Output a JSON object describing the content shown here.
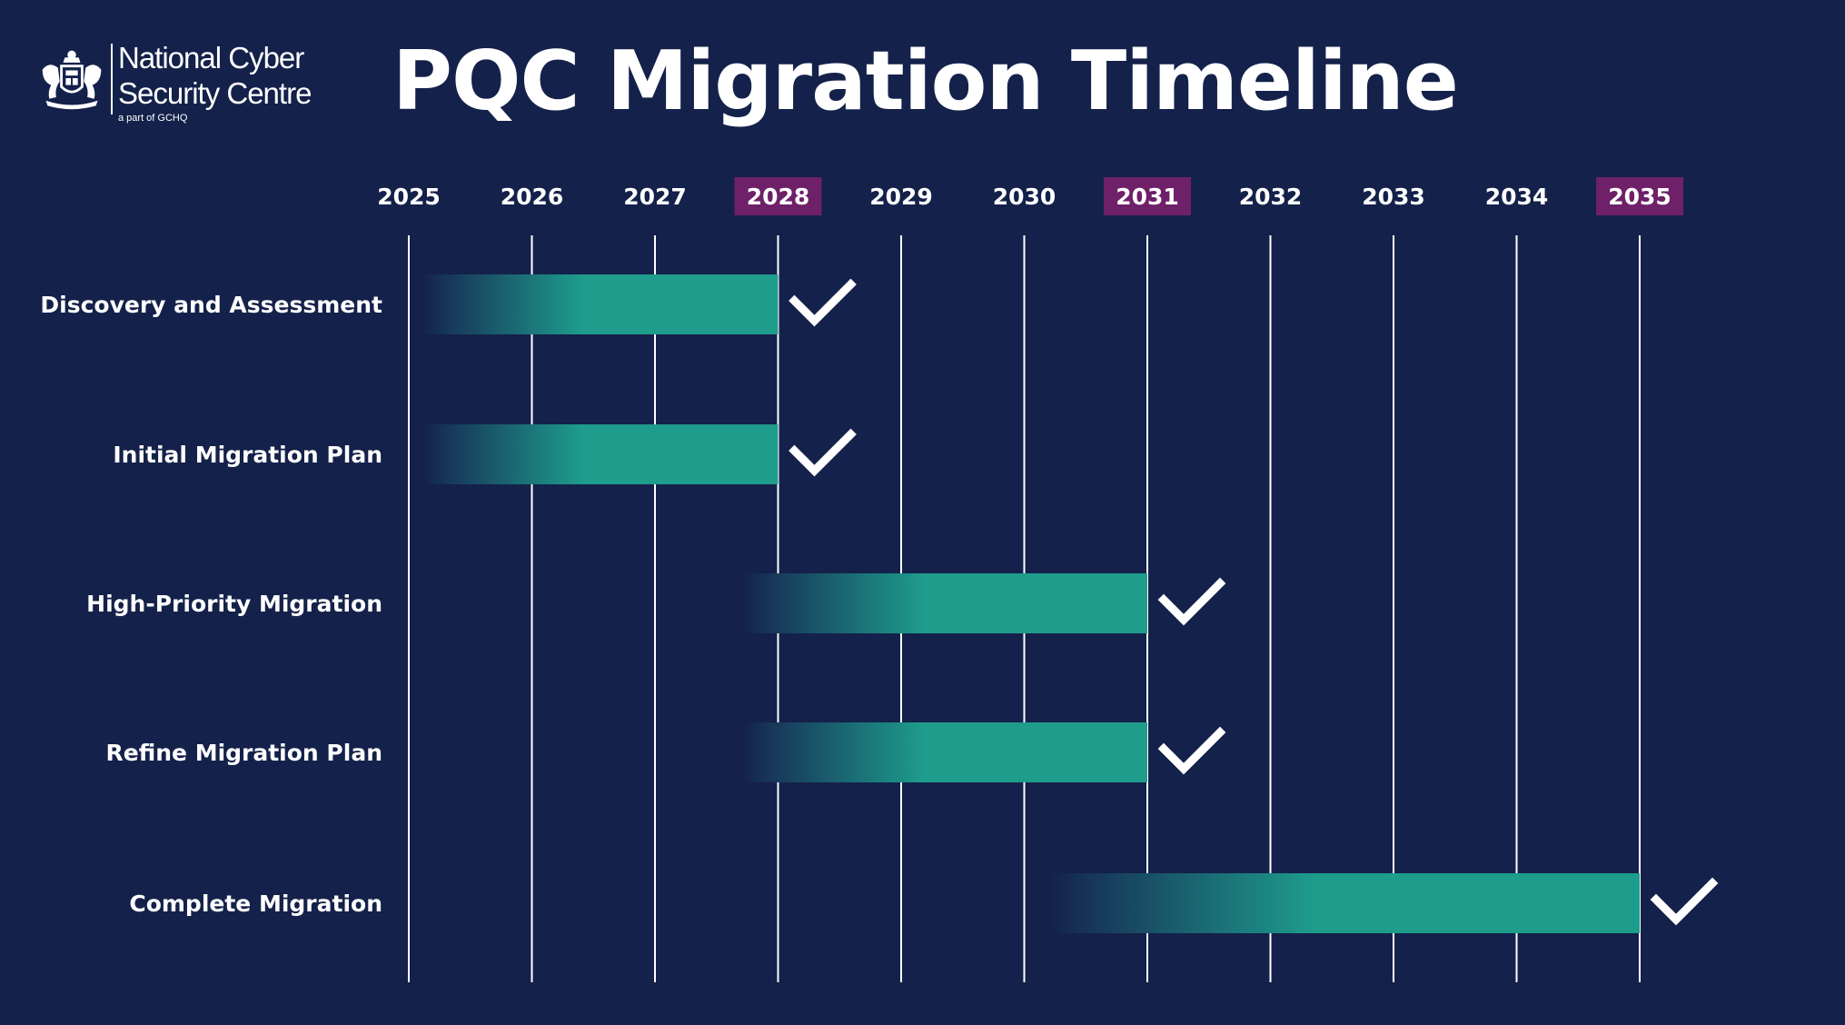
{
  "branding": {
    "name_line1": "National Cyber",
    "name_line2": "Security Centre",
    "tagline": "a part of GCHQ",
    "logo_icon": "royal-crest-icon"
  },
  "page": {
    "title": "PQC Migration Timeline"
  },
  "colors": {
    "background": "#14214a",
    "bar": "#1e9c8c",
    "bar_fade": "#17385a",
    "highlight": "#6e2068",
    "gridline": "#ffffff",
    "check": "#ffffff"
  },
  "chart_data": {
    "type": "gantt",
    "title": "PQC Migration Timeline",
    "years": [
      "2025",
      "2026",
      "2027",
      "2028",
      "2029",
      "2030",
      "2031",
      "2032",
      "2033",
      "2034",
      "2035"
    ],
    "highlighted_years": [
      "2028",
      "2031",
      "2035"
    ],
    "xlim": [
      2025,
      2035
    ],
    "tasks": [
      {
        "label": "Discovery and Assessment",
        "start": 2025.1,
        "end": 2028,
        "completed": true
      },
      {
        "label": "Initial Migration Plan",
        "start": 2025.1,
        "end": 2028,
        "completed": true
      },
      {
        "label": "High-Priority Migration",
        "start": 2027.7,
        "end": 2031,
        "completed": true
      },
      {
        "label": "Refine Migration Plan",
        "start": 2027.7,
        "end": 2031,
        "completed": true
      },
      {
        "label": "Complete Migration",
        "start": 2030.2,
        "end": 2035,
        "completed": true
      }
    ],
    "milestone_icon": "check-icon",
    "grid": true
  }
}
